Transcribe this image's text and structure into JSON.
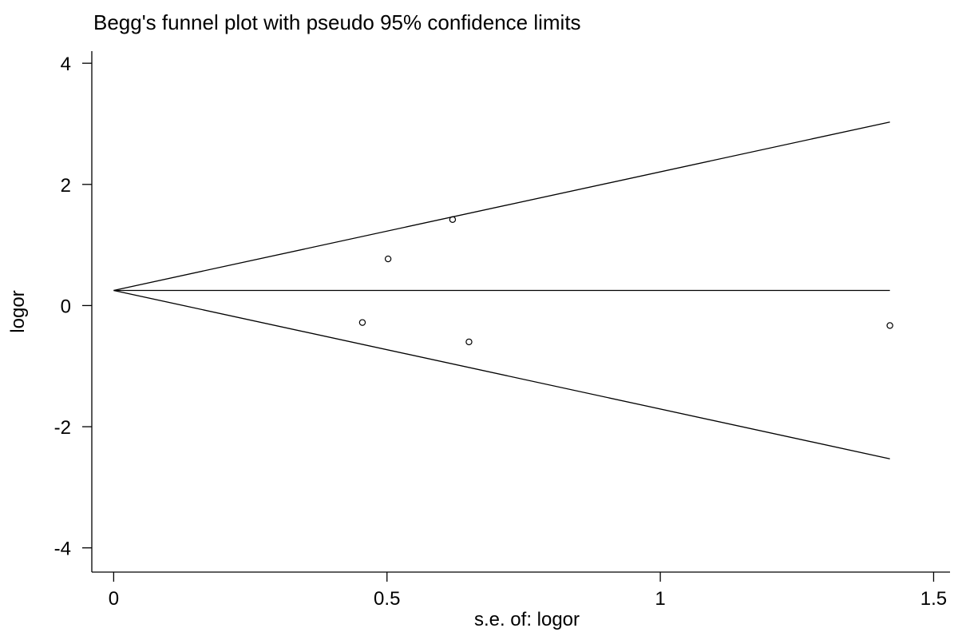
{
  "chart_data": {
    "type": "scatter",
    "title": "Begg's funnel plot with pseudo 95% confidence limits",
    "xlabel": "s.e. of: logor",
    "ylabel": "logor",
    "xlim": [
      -0.04,
      1.53
    ],
    "ylim": [
      -4.4,
      4.2
    ],
    "x_ticks": [
      0,
      0.5,
      1,
      1.5
    ],
    "x_tick_labels": [
      "0",
      "0.5",
      "1",
      "1.5"
    ],
    "y_ticks": [
      4,
      2,
      0,
      -2,
      -4
    ],
    "y_tick_labels": [
      "4",
      "2",
      "0",
      "-2",
      "-4"
    ],
    "grid": false,
    "pooled_estimate": 0.25,
    "funnel": {
      "x": [
        0,
        1.42
      ],
      "upper": [
        0.25,
        3.03
      ],
      "lower": [
        0.25,
        -2.53
      ]
    },
    "points": [
      {
        "x": 0.455,
        "y": -0.28
      },
      {
        "x": 0.502,
        "y": 0.77
      },
      {
        "x": 0.62,
        "y": 1.42
      },
      {
        "x": 0.65,
        "y": -0.6
      },
      {
        "x": 1.42,
        "y": -0.33
      }
    ],
    "colors": {
      "line": "#000000",
      "marker": "#000000",
      "background": "#ffffff"
    }
  }
}
